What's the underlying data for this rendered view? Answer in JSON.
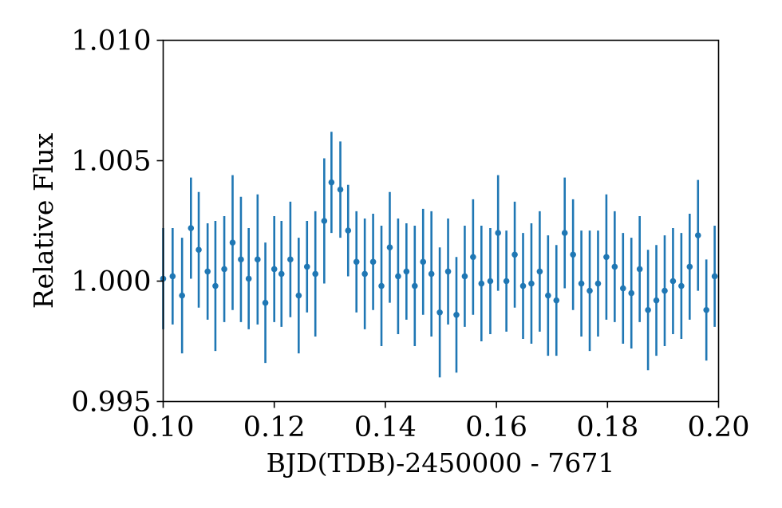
{
  "chart_data": {
    "type": "scatter",
    "title": "",
    "xlabel": "BJD(TDB)-2450000 - 7671",
    "ylabel": "Relative Flux",
    "xlim": [
      0.1,
      0.2
    ],
    "ylim": [
      0.995,
      1.01
    ],
    "xticks": [
      0.1,
      0.12,
      0.14,
      0.16,
      0.18,
      0.2
    ],
    "xtick_labels": [
      "0.10",
      "0.12",
      "0.14",
      "0.16",
      "0.18",
      "0.20"
    ],
    "yticks": [
      0.995,
      1.0,
      1.005,
      1.01
    ],
    "ytick_labels": [
      "0.995",
      "1.000",
      "1.005",
      "1.010"
    ],
    "grid": false,
    "legend": "none",
    "color": "#1f77b4",
    "series": [
      {
        "x": [
          0.1,
          0.1017,
          0.1034,
          0.105,
          0.1064,
          0.108,
          0.1094,
          0.111,
          0.1125,
          0.114,
          0.1154,
          0.117,
          0.1184,
          0.12,
          0.1213,
          0.1229,
          0.1244,
          0.1259,
          0.1274,
          0.129,
          0.1303,
          0.1319,
          0.1333,
          0.1348,
          0.1363,
          0.1378,
          0.1393,
          0.1408,
          0.1423,
          0.1438,
          0.1453,
          0.1468,
          0.1483,
          0.1498,
          0.1513,
          0.1528,
          0.1543,
          0.1558,
          0.1573,
          0.1589,
          0.1603,
          0.1618,
          0.1633,
          0.1648,
          0.1663,
          0.1678,
          0.1693,
          0.1708,
          0.1723,
          0.1738,
          0.1753,
          0.1768,
          0.1783,
          0.1798,
          0.1813,
          0.1828,
          0.1843,
          0.1858,
          0.1873,
          0.1888,
          0.1903,
          0.1918,
          0.1933,
          0.1948,
          0.1963,
          0.1978,
          0.1993
        ],
        "y": [
          1.0001,
          1.0002,
          0.9994,
          1.0022,
          1.0013,
          1.0004,
          0.9998,
          1.0005,
          1.0016,
          1.0009,
          1.0001,
          1.0009,
          0.9991,
          1.0005,
          1.0003,
          1.0009,
          0.9994,
          1.0006,
          1.0003,
          1.0025,
          1.0041,
          1.0038,
          1.0021,
          1.0008,
          1.0003,
          1.0008,
          0.9998,
          1.0014,
          1.0002,
          1.0004,
          0.9998,
          1.0008,
          1.0003,
          0.9987,
          1.0004,
          0.9986,
          1.0002,
          1.001,
          0.9999,
          1.0,
          1.002,
          1.0,
          1.0011,
          0.9998,
          0.9999,
          1.0004,
          0.9994,
          0.9992,
          1.002,
          1.0011,
          0.9999,
          0.9996,
          0.9999,
          1.001,
          1.0006,
          0.9997,
          0.9995,
          1.0005,
          0.9988,
          0.9992,
          0.9996,
          1.0,
          0.9998,
          1.0006,
          1.0019,
          0.9988,
          1.0002
        ],
        "yerr": [
          0.0021,
          0.002,
          0.0024,
          0.0021,
          0.0024,
          0.002,
          0.0027,
          0.0022,
          0.0028,
          0.0026,
          0.0021,
          0.0027,
          0.0025,
          0.0022,
          0.0022,
          0.0024,
          0.0024,
          0.0019,
          0.0026,
          0.0026,
          0.0021,
          0.002,
          0.0019,
          0.0021,
          0.0023,
          0.002,
          0.0025,
          0.0023,
          0.0024,
          0.002,
          0.0025,
          0.0022,
          0.0026,
          0.0027,
          0.0022,
          0.0024,
          0.0021,
          0.0024,
          0.0024,
          0.0022,
          0.0024,
          0.0021,
          0.0022,
          0.0022,
          0.0025,
          0.0025,
          0.0025,
          0.0023,
          0.0023,
          0.0023,
          0.0022,
          0.0025,
          0.0022,
          0.0026,
          0.0023,
          0.0023,
          0.0023,
          0.0022,
          0.0025,
          0.0023,
          0.0023,
          0.0022,
          0.0022,
          0.0022,
          0.0023,
          0.0021,
          0.0021
        ]
      }
    ]
  }
}
